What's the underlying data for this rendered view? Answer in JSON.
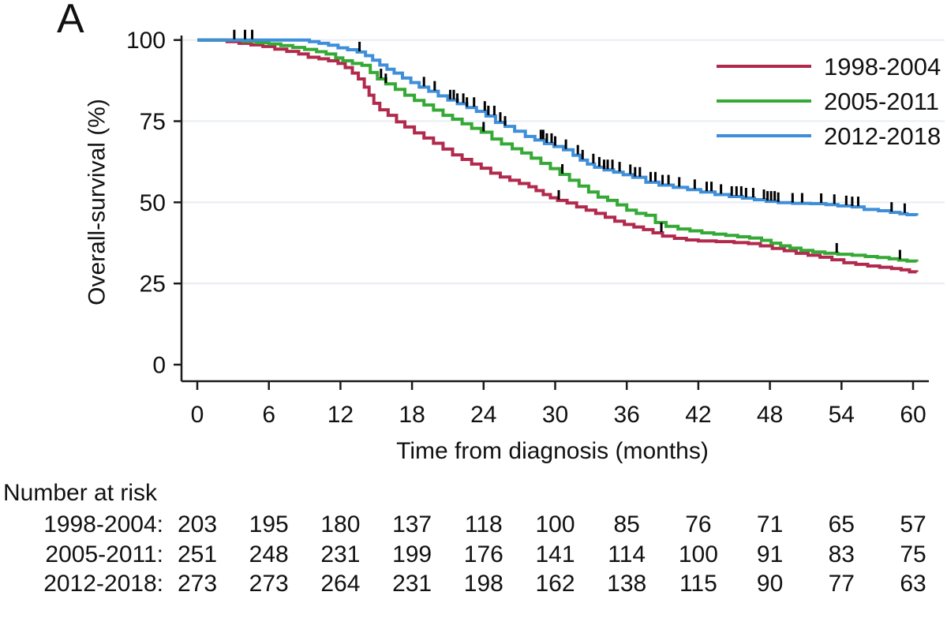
{
  "panel_label": "A",
  "chart_data": {
    "type": "line",
    "subtype": "kaplan-meier-step-survival",
    "title": "",
    "xlabel": "Time from diagnosis (months)",
    "ylabel": "Overall-survival (%)",
    "xlim": [
      0,
      60
    ],
    "ylim": [
      0,
      100
    ],
    "x_ticks": [
      0,
      6,
      12,
      18,
      24,
      30,
      36,
      42,
      48,
      54,
      60
    ],
    "y_ticks": [
      0,
      25,
      50,
      75,
      100
    ],
    "grid": "horizontal-light",
    "legend_position": "top-right-inside",
    "series": [
      {
        "name": "1998-2004",
        "color": "#b12a4d",
        "points": [
          [
            0,
            100
          ],
          [
            2.5,
            99.5
          ],
          [
            3.5,
            99
          ],
          [
            4.5,
            98.5
          ],
          [
            5.5,
            98
          ],
          [
            6.5,
            97.2
          ],
          [
            7.5,
            96.5
          ],
          [
            8.5,
            95.7
          ],
          [
            9.3,
            94.7
          ],
          [
            10.2,
            94.2
          ],
          [
            11,
            93.6
          ],
          [
            11.8,
            92.8
          ],
          [
            12.4,
            91.5
          ],
          [
            13,
            89.8
          ],
          [
            13.5,
            88
          ],
          [
            14,
            85.5
          ],
          [
            14.4,
            83
          ],
          [
            14.8,
            80.5
          ],
          [
            15.3,
            78.5
          ],
          [
            16,
            76.8
          ],
          [
            16.7,
            74.8
          ],
          [
            17.4,
            73.2
          ],
          [
            18.2,
            71.4
          ],
          [
            19,
            69.8
          ],
          [
            19.8,
            68.2
          ],
          [
            20.6,
            66.4
          ],
          [
            21.4,
            64.6
          ],
          [
            22.2,
            63.2
          ],
          [
            23,
            61.8
          ],
          [
            23.8,
            60.5
          ],
          [
            24.6,
            59
          ],
          [
            25.4,
            57.8
          ],
          [
            26.2,
            56.8
          ],
          [
            27,
            55.8
          ],
          [
            27.8,
            54.8
          ],
          [
            28.4,
            53.6
          ],
          [
            29,
            52.4
          ],
          [
            29.6,
            51.4
          ],
          [
            30.2,
            50.6
          ],
          [
            31,
            49.8
          ],
          [
            31.8,
            48.6
          ],
          [
            32.6,
            47.6
          ],
          [
            33.4,
            46.6
          ],
          [
            34.2,
            45.4
          ],
          [
            35,
            44.2
          ],
          [
            35.8,
            43.2
          ],
          [
            36.6,
            42.4
          ],
          [
            37.4,
            41.6
          ],
          [
            38.2,
            40.6
          ],
          [
            39,
            39.6
          ],
          [
            40,
            38.9
          ],
          [
            41,
            38.4
          ],
          [
            42,
            38.1
          ],
          [
            43.5,
            37.9
          ],
          [
            45,
            37.6
          ],
          [
            46.2,
            37.3
          ],
          [
            47.2,
            36.6
          ],
          [
            48.2,
            35.8
          ],
          [
            49.2,
            35.1
          ],
          [
            50.2,
            34.3
          ],
          [
            51.2,
            33.7
          ],
          [
            52.2,
            33.1
          ],
          [
            53.2,
            32.3
          ],
          [
            54.2,
            31.4
          ],
          [
            55.2,
            30.9
          ],
          [
            56.2,
            30.4
          ],
          [
            57.2,
            30
          ],
          [
            58.2,
            29.6
          ],
          [
            59,
            29.2
          ],
          [
            59.7,
            28.6
          ],
          [
            60.3,
            28.5
          ]
        ],
        "censor_marks": [
          30.3,
          38.9
        ]
      },
      {
        "name": "2005-2011",
        "color": "#35a935",
        "points": [
          [
            0,
            100
          ],
          [
            3.8,
            99.6
          ],
          [
            5,
            99.2
          ],
          [
            6,
            98.8
          ],
          [
            7,
            98.3
          ],
          [
            8,
            97.7
          ],
          [
            9,
            97.1
          ],
          [
            10,
            96.4
          ],
          [
            10.8,
            95.7
          ],
          [
            11.6,
            94.5
          ],
          [
            12.2,
            93.6
          ],
          [
            13,
            92.8
          ],
          [
            13.8,
            92.2
          ],
          [
            14.5,
            90
          ],
          [
            15.1,
            88
          ],
          [
            15.8,
            86.5
          ],
          [
            16.6,
            84.8
          ],
          [
            17.4,
            83
          ],
          [
            18.2,
            81.4
          ],
          [
            19,
            80
          ],
          [
            19.8,
            78.4
          ],
          [
            20.6,
            76.8
          ],
          [
            21.4,
            75.6
          ],
          [
            22.2,
            74.2
          ],
          [
            23,
            72.8
          ],
          [
            23.8,
            71.6
          ],
          [
            24.7,
            69.5
          ],
          [
            25.5,
            68
          ],
          [
            26.4,
            66.5
          ],
          [
            27.2,
            65.2
          ],
          [
            28,
            63.6
          ],
          [
            28.8,
            62
          ],
          [
            29.6,
            60.4
          ],
          [
            30.4,
            58.6
          ],
          [
            31.2,
            56.8
          ],
          [
            32,
            55
          ],
          [
            32.8,
            53.2
          ],
          [
            33.6,
            51.6
          ],
          [
            34.4,
            50.6
          ],
          [
            35.2,
            49.2
          ],
          [
            36,
            47.6
          ],
          [
            36.8,
            46.6
          ],
          [
            37.6,
            46
          ],
          [
            38.4,
            43.8
          ],
          [
            39.3,
            42.6
          ],
          [
            40.3,
            41.8
          ],
          [
            41.3,
            41.2
          ],
          [
            42.3,
            40.6
          ],
          [
            43.3,
            40.2
          ],
          [
            44.3,
            39.8
          ],
          [
            45.3,
            39.4
          ],
          [
            46.3,
            39
          ],
          [
            47.3,
            38.3
          ],
          [
            48.1,
            37.4
          ],
          [
            48.9,
            36.6
          ],
          [
            49.7,
            35.9
          ],
          [
            50.6,
            35.2
          ],
          [
            51.6,
            34.7
          ],
          [
            52.6,
            34.3
          ],
          [
            53.7,
            34
          ],
          [
            54.9,
            33.7
          ],
          [
            56,
            33.3
          ],
          [
            57,
            33
          ],
          [
            58,
            32.6
          ],
          [
            58.8,
            32.2
          ],
          [
            59.5,
            31.9
          ],
          [
            60.3,
            31.7
          ]
        ],
        "censor_marks": [
          15.4,
          15.8,
          24,
          30.6,
          53.6,
          58.9
        ]
      },
      {
        "name": "2012-2018",
        "color": "#3e8ed9",
        "points": [
          [
            0,
            100
          ],
          [
            8.6,
            100
          ],
          [
            9.4,
            99.5
          ],
          [
            10.2,
            99
          ],
          [
            11,
            98.4
          ],
          [
            11.8,
            97.6
          ],
          [
            12.6,
            97
          ],
          [
            13.4,
            96.3
          ],
          [
            14.1,
            95.2
          ],
          [
            14.7,
            93.8
          ],
          [
            15.3,
            92.3
          ],
          [
            15.9,
            91
          ],
          [
            16.5,
            89.8
          ],
          [
            17.2,
            88.3
          ],
          [
            17.9,
            86.9
          ],
          [
            18.6,
            85.5
          ],
          [
            19.4,
            84.2
          ],
          [
            20.2,
            82.8
          ],
          [
            21,
            81.5
          ],
          [
            21.8,
            80.4
          ],
          [
            22.6,
            79.2
          ],
          [
            23.4,
            78
          ],
          [
            24.2,
            76.6
          ],
          [
            25,
            74.6
          ],
          [
            25.8,
            73.4
          ],
          [
            26.6,
            71.9
          ],
          [
            27.5,
            70.3
          ],
          [
            28.3,
            69.2
          ],
          [
            29.1,
            68.1
          ],
          [
            29.9,
            67.2
          ],
          [
            30.7,
            66.2
          ],
          [
            31.5,
            64.5
          ],
          [
            32.1,
            63
          ],
          [
            32.7,
            61.8
          ],
          [
            33.3,
            60.8
          ],
          [
            34.1,
            60
          ],
          [
            34.9,
            59.3
          ],
          [
            35.7,
            58.5
          ],
          [
            36.5,
            57.7
          ],
          [
            37.6,
            56.2
          ],
          [
            38.7,
            55.3
          ],
          [
            39.9,
            54.6
          ],
          [
            41.1,
            53.9
          ],
          [
            42.2,
            53.2
          ],
          [
            43.4,
            52.4
          ],
          [
            44.6,
            51.8
          ],
          [
            45.7,
            51.3
          ],
          [
            46.7,
            50.8
          ],
          [
            47.7,
            50.3
          ],
          [
            48.7,
            49.9
          ],
          [
            49.9,
            49.7
          ],
          [
            51.4,
            49.6
          ],
          [
            52.7,
            49.3
          ],
          [
            53.7,
            48.9
          ],
          [
            54.9,
            48.6
          ],
          [
            55.9,
            47.8
          ],
          [
            57.1,
            47.4
          ],
          [
            58.1,
            46.9
          ],
          [
            58.9,
            46.5
          ],
          [
            59.5,
            46.2
          ],
          [
            60.3,
            45.9
          ]
        ],
        "censor_marks": [
          3.1,
          4,
          4.6,
          13.6,
          19,
          19.9,
          21.2,
          21.5,
          21.8,
          22.3,
          22.6,
          23.2,
          24.1,
          24.4,
          24.9,
          25.4,
          25.8,
          28.8,
          29,
          29.3,
          29.7,
          30,
          30.9,
          31.9,
          32.3,
          33.2,
          33.7,
          34.1,
          34.4,
          34.8,
          35.4,
          36.3,
          36.7,
          37.1,
          38,
          38.4,
          39,
          39.5,
          40.4,
          41.7,
          42.7,
          43.1,
          43.9,
          44.8,
          45.2,
          45.6,
          46,
          46.6,
          47.5,
          47.8,
          48.1,
          48.4,
          48.7,
          49.9,
          50.7,
          52.3,
          53.4,
          54.4,
          54.9,
          55.4,
          58.2,
          59.3
        ]
      }
    ]
  },
  "risk_table": {
    "title": "Number at risk",
    "times": [
      0,
      6,
      12,
      18,
      24,
      30,
      36,
      42,
      48,
      54,
      60
    ],
    "rows": [
      {
        "label": "1998-2004:",
        "values": [
          203,
          195,
          180,
          137,
          118,
          100,
          85,
          76,
          71,
          65,
          57
        ]
      },
      {
        "label": "2005-2011:",
        "values": [
          251,
          248,
          231,
          199,
          176,
          141,
          114,
          100,
          91,
          83,
          75
        ]
      },
      {
        "label": "2012-2018:",
        "values": [
          273,
          273,
          264,
          231,
          198,
          162,
          138,
          115,
          90,
          77,
          63
        ]
      }
    ]
  },
  "colors": {
    "background": "#ffffff",
    "axis": "#1a1a1a",
    "text": "#111111",
    "grid": "#e8ecf2",
    "censor": "#000000"
  }
}
